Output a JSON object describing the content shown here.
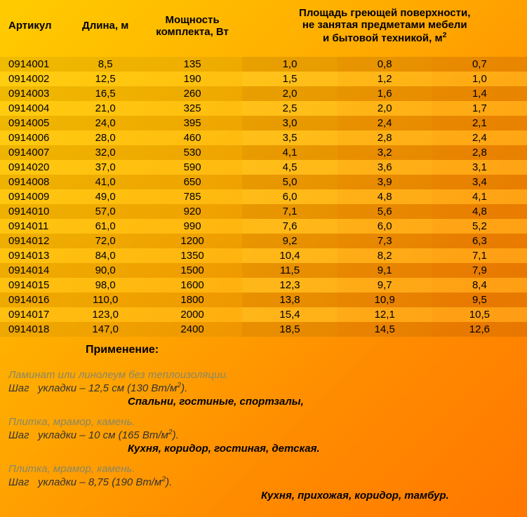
{
  "table": {
    "headers": {
      "article": "Артикул",
      "length": "Длина, м",
      "power": "Мощность комплекта, Вт",
      "area": "Площадь греющей поверхности, не занятая предметами мебели и бытовой техникой, м²"
    },
    "rows": [
      {
        "art": "0914001",
        "len": "8,5",
        "pow": "135",
        "a1": "1,0",
        "a2": "0,8",
        "a3": "0,7"
      },
      {
        "art": "0914002",
        "len": "12,5",
        "pow": "190",
        "a1": "1,5",
        "a2": "1,2",
        "a3": "1,0"
      },
      {
        "art": "0914003",
        "len": "16,5",
        "pow": "260",
        "a1": "2,0",
        "a2": "1,6",
        "a3": "1,4"
      },
      {
        "art": "0914004",
        "len": "21,0",
        "pow": "325",
        "a1": "2,5",
        "a2": "2,0",
        "a3": "1,7"
      },
      {
        "art": "0914005",
        "len": "24,0",
        "pow": "395",
        "a1": "3,0",
        "a2": "2,4",
        "a3": "2,1"
      },
      {
        "art": "0914006",
        "len": "28,0",
        "pow": "460",
        "a1": "3,5",
        "a2": "2,8",
        "a3": "2,4"
      },
      {
        "art": "0914007",
        "len": "32,0",
        "pow": "530",
        "a1": "4,1",
        "a2": "3,2",
        "a3": "2,8"
      },
      {
        "art": "0914020",
        "len": "37,0",
        "pow": "590",
        "a1": "4,5",
        "a2": "3,6",
        "a3": "3,1"
      },
      {
        "art": "0914008",
        "len": "41,0",
        "pow": "650",
        "a1": "5,0",
        "a2": "3,9",
        "a3": "3,4"
      },
      {
        "art": "0914009",
        "len": "49,0",
        "pow": "785",
        "a1": "6,0",
        "a2": "4,8",
        "a3": "4,1"
      },
      {
        "art": "0914010",
        "len": "57,0",
        "pow": "920",
        "a1": "7,1",
        "a2": "5,6",
        "a3": "4,8"
      },
      {
        "art": "0914011",
        "len": "61,0",
        "pow": "990",
        "a1": "7,6",
        "a2": "6,0",
        "a3": "5,2"
      },
      {
        "art": "0914012",
        "len": "72,0",
        "pow": "1200",
        "a1": "9,2",
        "a2": "7,3",
        "a3": "6,3"
      },
      {
        "art": "0914013",
        "len": "84,0",
        "pow": "1350",
        "a1": "10,4",
        "a2": "8,2",
        "a3": "7,1"
      },
      {
        "art": "0914014",
        "len": "90,0",
        "pow": "1500",
        "a1": "11,5",
        "a2": "9,1",
        "a3": "7,9"
      },
      {
        "art": "0914015",
        "len": "98,0",
        "pow": "1600",
        "a1": "12,3",
        "a2": "9,7",
        "a3": "8,4"
      },
      {
        "art": "0914016",
        "len": "110,0",
        "pow": "1800",
        "a1": "13,8",
        "a2": "10,9",
        "a3": "9,5"
      },
      {
        "art": "0914017",
        "len": "123,0",
        "pow": "2000",
        "a1": "15,4",
        "a2": "12,1",
        "a3": "10,5"
      },
      {
        "art": "0914018",
        "len": "147,0",
        "pow": "2400",
        "a1": "18,5",
        "a2": "14,5",
        "a3": "12,6"
      }
    ]
  },
  "application": {
    "title": "Применение:",
    "blocks": [
      {
        "surface": "Ламинат или линолеум без теплоизоляции.",
        "step": "Шаг   укладки – 12,5 см (130 Вт/м²).",
        "rooms": "Спальни, гостиные, спортзалы,",
        "roomsAlign": "left"
      },
      {
        "surface": "Плитка, мрамор, камень.",
        "step": "Шаг   укладки – 10 см (165 Вт/м²).",
        "rooms": "Кухня, коридор, гостиная, детская.",
        "roomsAlign": "left"
      },
      {
        "surface": "Плитка, мрамор, камень.",
        "step": "Шаг   укладки – 8,75 (190 Вт/м²).",
        "rooms": "Кухня, прихожая, коридор, тамбур.",
        "roomsAlign": "right"
      }
    ]
  },
  "styling": {
    "background_gradient": [
      "#ffcc00",
      "#ffaa00",
      "#ff8c00",
      "#ff7700"
    ],
    "stripe_a_bg": "rgba(150,120,0,0.15)",
    "stripe_b_bg": "rgba(255,230,60,0.25)",
    "header_fontsize": 15,
    "body_fontsize": 15,
    "surface_color": "#888866",
    "text_color": "#000000"
  }
}
